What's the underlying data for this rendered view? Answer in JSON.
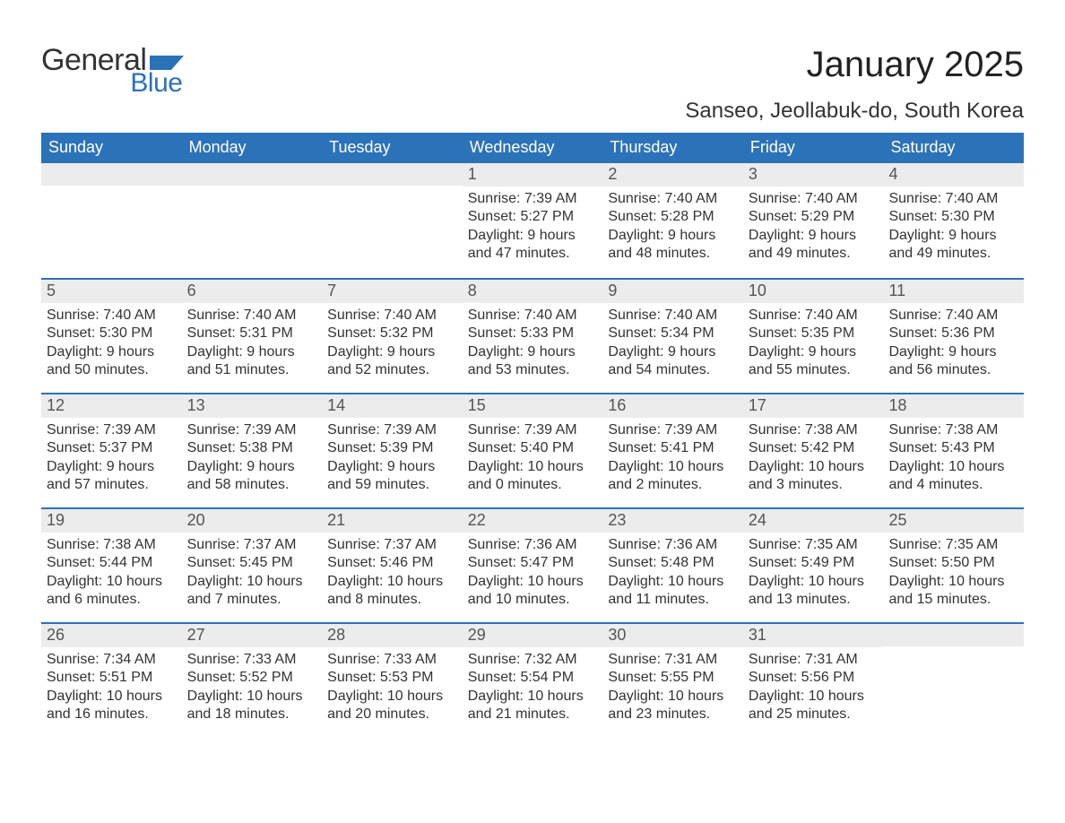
{
  "logo": {
    "text_general": "General",
    "text_blue": "Blue",
    "flag_color": "#2c72b8"
  },
  "title": "January 2025",
  "location": "Sanseo, Jeollabuk-do, South Korea",
  "colors": {
    "header_bg": "#2c72b8",
    "header_fg": "#ffffff",
    "daynum_bg": "#ececec",
    "daynum_fg": "#555555",
    "text": "#333333",
    "week_border": "#2c72b8",
    "page_bg": "#ffffff"
  },
  "typography": {
    "title_fontsize": 40,
    "location_fontsize": 24,
    "dow_fontsize": 18,
    "daynum_fontsize": 18,
    "body_fontsize": 16,
    "font_family": "Arial"
  },
  "days_of_week": [
    "Sunday",
    "Monday",
    "Tuesday",
    "Wednesday",
    "Thursday",
    "Friday",
    "Saturday"
  ],
  "calendar": {
    "type": "table",
    "columns": 7,
    "rows": 5,
    "first_day_column_index": 3,
    "weeks": [
      [
        null,
        null,
        null,
        {
          "n": "1",
          "sunrise": "Sunrise: 7:39 AM",
          "sunset": "Sunset: 5:27 PM",
          "daylight1": "Daylight: 9 hours",
          "daylight2": "and 47 minutes."
        },
        {
          "n": "2",
          "sunrise": "Sunrise: 7:40 AM",
          "sunset": "Sunset: 5:28 PM",
          "daylight1": "Daylight: 9 hours",
          "daylight2": "and 48 minutes."
        },
        {
          "n": "3",
          "sunrise": "Sunrise: 7:40 AM",
          "sunset": "Sunset: 5:29 PM",
          "daylight1": "Daylight: 9 hours",
          "daylight2": "and 49 minutes."
        },
        {
          "n": "4",
          "sunrise": "Sunrise: 7:40 AM",
          "sunset": "Sunset: 5:30 PM",
          "daylight1": "Daylight: 9 hours",
          "daylight2": "and 49 minutes."
        }
      ],
      [
        {
          "n": "5",
          "sunrise": "Sunrise: 7:40 AM",
          "sunset": "Sunset: 5:30 PM",
          "daylight1": "Daylight: 9 hours",
          "daylight2": "and 50 minutes."
        },
        {
          "n": "6",
          "sunrise": "Sunrise: 7:40 AM",
          "sunset": "Sunset: 5:31 PM",
          "daylight1": "Daylight: 9 hours",
          "daylight2": "and 51 minutes."
        },
        {
          "n": "7",
          "sunrise": "Sunrise: 7:40 AM",
          "sunset": "Sunset: 5:32 PM",
          "daylight1": "Daylight: 9 hours",
          "daylight2": "and 52 minutes."
        },
        {
          "n": "8",
          "sunrise": "Sunrise: 7:40 AM",
          "sunset": "Sunset: 5:33 PM",
          "daylight1": "Daylight: 9 hours",
          "daylight2": "and 53 minutes."
        },
        {
          "n": "9",
          "sunrise": "Sunrise: 7:40 AM",
          "sunset": "Sunset: 5:34 PM",
          "daylight1": "Daylight: 9 hours",
          "daylight2": "and 54 minutes."
        },
        {
          "n": "10",
          "sunrise": "Sunrise: 7:40 AM",
          "sunset": "Sunset: 5:35 PM",
          "daylight1": "Daylight: 9 hours",
          "daylight2": "and 55 minutes."
        },
        {
          "n": "11",
          "sunrise": "Sunrise: 7:40 AM",
          "sunset": "Sunset: 5:36 PM",
          "daylight1": "Daylight: 9 hours",
          "daylight2": "and 56 minutes."
        }
      ],
      [
        {
          "n": "12",
          "sunrise": "Sunrise: 7:39 AM",
          "sunset": "Sunset: 5:37 PM",
          "daylight1": "Daylight: 9 hours",
          "daylight2": "and 57 minutes."
        },
        {
          "n": "13",
          "sunrise": "Sunrise: 7:39 AM",
          "sunset": "Sunset: 5:38 PM",
          "daylight1": "Daylight: 9 hours",
          "daylight2": "and 58 minutes."
        },
        {
          "n": "14",
          "sunrise": "Sunrise: 7:39 AM",
          "sunset": "Sunset: 5:39 PM",
          "daylight1": "Daylight: 9 hours",
          "daylight2": "and 59 minutes."
        },
        {
          "n": "15",
          "sunrise": "Sunrise: 7:39 AM",
          "sunset": "Sunset: 5:40 PM",
          "daylight1": "Daylight: 10 hours",
          "daylight2": "and 0 minutes."
        },
        {
          "n": "16",
          "sunrise": "Sunrise: 7:39 AM",
          "sunset": "Sunset: 5:41 PM",
          "daylight1": "Daylight: 10 hours",
          "daylight2": "and 2 minutes."
        },
        {
          "n": "17",
          "sunrise": "Sunrise: 7:38 AM",
          "sunset": "Sunset: 5:42 PM",
          "daylight1": "Daylight: 10 hours",
          "daylight2": "and 3 minutes."
        },
        {
          "n": "18",
          "sunrise": "Sunrise: 7:38 AM",
          "sunset": "Sunset: 5:43 PM",
          "daylight1": "Daylight: 10 hours",
          "daylight2": "and 4 minutes."
        }
      ],
      [
        {
          "n": "19",
          "sunrise": "Sunrise: 7:38 AM",
          "sunset": "Sunset: 5:44 PM",
          "daylight1": "Daylight: 10 hours",
          "daylight2": "and 6 minutes."
        },
        {
          "n": "20",
          "sunrise": "Sunrise: 7:37 AM",
          "sunset": "Sunset: 5:45 PM",
          "daylight1": "Daylight: 10 hours",
          "daylight2": "and 7 minutes."
        },
        {
          "n": "21",
          "sunrise": "Sunrise: 7:37 AM",
          "sunset": "Sunset: 5:46 PM",
          "daylight1": "Daylight: 10 hours",
          "daylight2": "and 8 minutes."
        },
        {
          "n": "22",
          "sunrise": "Sunrise: 7:36 AM",
          "sunset": "Sunset: 5:47 PM",
          "daylight1": "Daylight: 10 hours",
          "daylight2": "and 10 minutes."
        },
        {
          "n": "23",
          "sunrise": "Sunrise: 7:36 AM",
          "sunset": "Sunset: 5:48 PM",
          "daylight1": "Daylight: 10 hours",
          "daylight2": "and 11 minutes."
        },
        {
          "n": "24",
          "sunrise": "Sunrise: 7:35 AM",
          "sunset": "Sunset: 5:49 PM",
          "daylight1": "Daylight: 10 hours",
          "daylight2": "and 13 minutes."
        },
        {
          "n": "25",
          "sunrise": "Sunrise: 7:35 AM",
          "sunset": "Sunset: 5:50 PM",
          "daylight1": "Daylight: 10 hours",
          "daylight2": "and 15 minutes."
        }
      ],
      [
        {
          "n": "26",
          "sunrise": "Sunrise: 7:34 AM",
          "sunset": "Sunset: 5:51 PM",
          "daylight1": "Daylight: 10 hours",
          "daylight2": "and 16 minutes."
        },
        {
          "n": "27",
          "sunrise": "Sunrise: 7:33 AM",
          "sunset": "Sunset: 5:52 PM",
          "daylight1": "Daylight: 10 hours",
          "daylight2": "and 18 minutes."
        },
        {
          "n": "28",
          "sunrise": "Sunrise: 7:33 AM",
          "sunset": "Sunset: 5:53 PM",
          "daylight1": "Daylight: 10 hours",
          "daylight2": "and 20 minutes."
        },
        {
          "n": "29",
          "sunrise": "Sunrise: 7:32 AM",
          "sunset": "Sunset: 5:54 PM",
          "daylight1": "Daylight: 10 hours",
          "daylight2": "and 21 minutes."
        },
        {
          "n": "30",
          "sunrise": "Sunrise: 7:31 AM",
          "sunset": "Sunset: 5:55 PM",
          "daylight1": "Daylight: 10 hours",
          "daylight2": "and 23 minutes."
        },
        {
          "n": "31",
          "sunrise": "Sunrise: 7:31 AM",
          "sunset": "Sunset: 5:56 PM",
          "daylight1": "Daylight: 10 hours",
          "daylight2": "and 25 minutes."
        },
        null
      ]
    ]
  }
}
